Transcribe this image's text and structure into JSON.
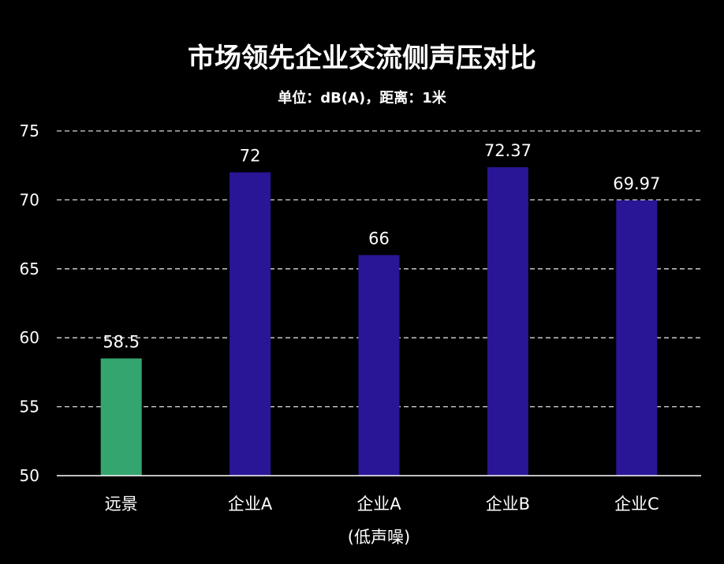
{
  "chart_data": {
    "type": "bar",
    "title": "市场领先企业交流侧声压对比",
    "subtitle": "单位：dB(A)，距离：1米",
    "categories": [
      "远景",
      "企业A",
      "企业A",
      "企业B",
      "企业C"
    ],
    "category_sublabels": [
      "",
      "",
      "(低声噪)",
      "",
      ""
    ],
    "values": [
      58.5,
      72,
      66,
      72.37,
      69.97
    ],
    "data_labels": [
      "58.5",
      "72",
      "66",
      "72.37",
      "69.97"
    ],
    "bar_colors": [
      "#34a56f",
      "#281696",
      "#281696",
      "#281696",
      "#281696"
    ],
    "ylim": [
      50,
      75
    ],
    "yticks": [
      50,
      55,
      60,
      65,
      70,
      75
    ],
    "grid": true,
    "legend": "none",
    "xlabel": "",
    "ylabel": ""
  },
  "colors": {
    "background": "#000000",
    "highlight_bar": "#34a56f",
    "bar": "#281696",
    "text": "#ffffff"
  }
}
